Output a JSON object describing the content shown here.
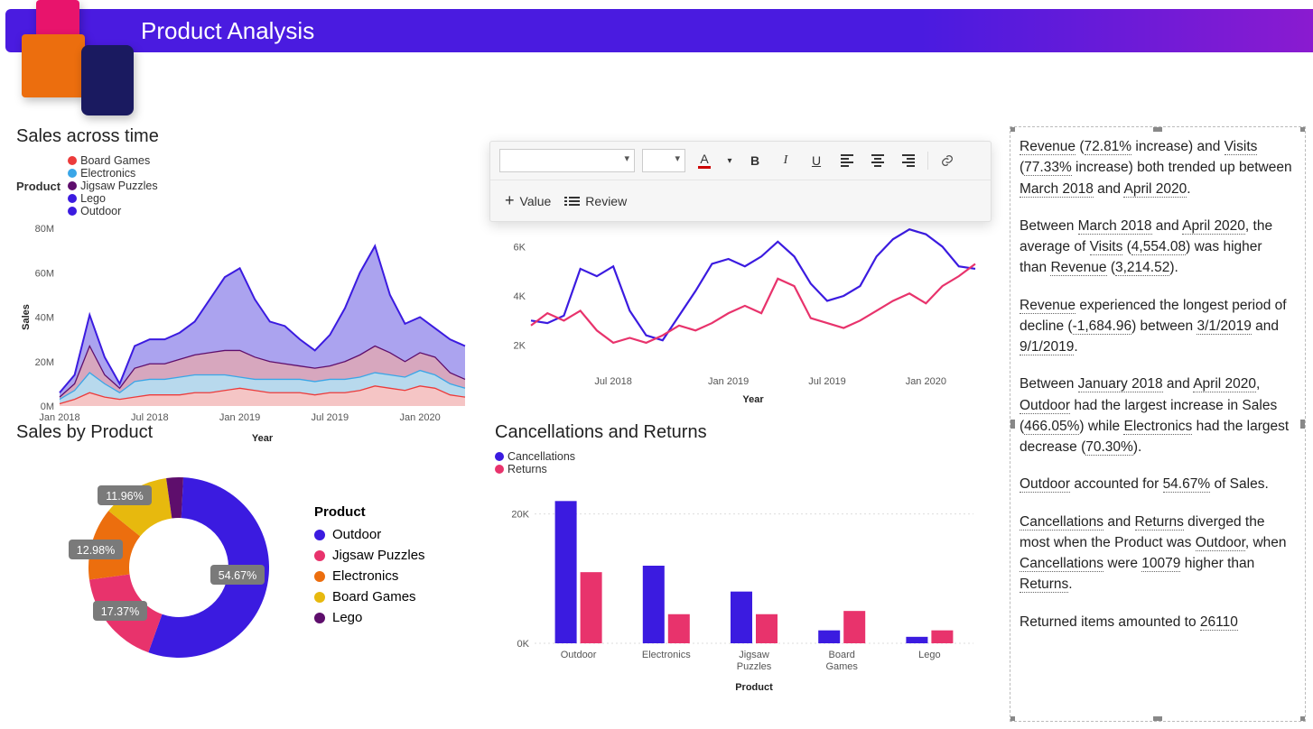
{
  "header": {
    "title": "Product Analysis"
  },
  "colors": {
    "outdoor": "#3b1be0",
    "jigsaw": "#e8336c",
    "electronics": "#ec6e0e",
    "boardgames": "#e7b90e",
    "lego": "#5e0e6c",
    "elec_line": "#3aa6e7",
    "cancel": "#3b1be0",
    "returns": "#e8336c",
    "area_fill": "#8f84ea"
  },
  "sales_time": {
    "title": "Sales across time",
    "legend_label": "Product",
    "series_order": [
      "Board Games",
      "Electronics",
      "Jigsaw Puzzles",
      "Lego",
      "Outdoor"
    ],
    "series_colors": [
      "#ec3b3b",
      "#3aa6e7",
      "#5e0e6c",
      "#3b1be0",
      "#3b1be0"
    ],
    "ylabel": "Sales",
    "xlabel": "Year",
    "yticks": [
      0,
      20,
      40,
      60,
      80
    ],
    "ytick_labels": [
      "0M",
      "20M",
      "40M",
      "60M",
      "80M"
    ],
    "x_labels": [
      "Jan 2018",
      "Jul 2018",
      "Jan 2019",
      "Jul 2019",
      "Jan 2020"
    ],
    "x_count": 28,
    "stacked_top": [
      6,
      14,
      41,
      22,
      10,
      27,
      30,
      30,
      33,
      38,
      48,
      58,
      62,
      48,
      38,
      36,
      30,
      25,
      32,
      44,
      60,
      72,
      50,
      37,
      40,
      35,
      30,
      27
    ],
    "stacked_mid": [
      4,
      10,
      27,
      14,
      8,
      17,
      19,
      19,
      21,
      23,
      24,
      25,
      25,
      22,
      20,
      19,
      18,
      17,
      18,
      20,
      23,
      27,
      24,
      20,
      24,
      22,
      15,
      12
    ],
    "stacked_low": [
      3,
      7,
      15,
      10,
      6,
      11,
      12,
      12,
      13,
      14,
      14,
      14,
      13,
      12,
      12,
      12,
      12,
      11,
      12,
      12,
      13,
      15,
      14,
      13,
      16,
      14,
      10,
      8
    ],
    "board_line": [
      1,
      3,
      6,
      4,
      3,
      4,
      5,
      5,
      5,
      6,
      6,
      7,
      8,
      7,
      6,
      6,
      6,
      5,
      6,
      6,
      7,
      9,
      8,
      7,
      9,
      8,
      5,
      4
    ]
  },
  "visits_chart": {
    "xlabel": "Year",
    "yticks": [
      2,
      4,
      6
    ],
    "ytick_labels": [
      "2K",
      "4K",
      "6K"
    ],
    "x_labels": [
      "Jul 2018",
      "Jan 2019",
      "Jul 2019",
      "Jan 2020"
    ],
    "x_count": 28,
    "blue": [
      3.0,
      2.9,
      3.2,
      5.1,
      4.8,
      5.2,
      3.4,
      2.4,
      2.2,
      3.2,
      4.2,
      5.3,
      5.5,
      5.2,
      5.6,
      6.2,
      5.6,
      4.5,
      3.8,
      4.0,
      4.4,
      5.6,
      6.3,
      6.7,
      6.5,
      6.0,
      5.2,
      5.1
    ],
    "pink": [
      2.8,
      3.3,
      3.0,
      3.4,
      2.6,
      2.1,
      2.3,
      2.1,
      2.4,
      2.8,
      2.6,
      2.9,
      3.3,
      3.6,
      3.3,
      4.7,
      4.4,
      3.1,
      2.9,
      2.7,
      3.0,
      3.4,
      3.8,
      4.1,
      3.7,
      4.4,
      4.8,
      5.3
    ],
    "colors": {
      "blue": "#3b1be0",
      "pink": "#e8336c"
    }
  },
  "donut": {
    "title": "Sales by Product",
    "legend_label": "Product",
    "slices": [
      {
        "label": "Outdoor",
        "value": 54.67,
        "color": "#3b1be0"
      },
      {
        "label": "Jigsaw Puzzles",
        "value": 17.37,
        "color": "#e8336c"
      },
      {
        "label": "Electronics",
        "value": 12.98,
        "color": "#ec6e0e"
      },
      {
        "label": "Board Games",
        "value": 11.96,
        "color": "#e7b90e"
      },
      {
        "label": "Lego",
        "value": 3.02,
        "color": "#5e0e6c"
      }
    ],
    "shown_pct": [
      "54.67%",
      "17.37%",
      "12.98%",
      "11.96%"
    ]
  },
  "bars": {
    "title": "Cancellations and Returns",
    "legend": [
      "Cancellations",
      "Returns"
    ],
    "legend_colors": [
      "#3b1be0",
      "#e8336c"
    ],
    "xlabel": "Product",
    "yticks": [
      0,
      20
    ],
    "ytick_labels": [
      "0K",
      "20K"
    ],
    "ymax": 24,
    "categories": [
      "Outdoor",
      "Electronics",
      "Jigsaw Puzzles",
      "Board Games",
      "Lego"
    ],
    "cancellations": [
      22,
      12,
      8,
      2,
      1
    ],
    "returns": [
      11,
      4.5,
      4.5,
      5,
      2
    ]
  },
  "toolbar": {
    "font": "",
    "size": "",
    "value_label": "Value",
    "review_label": "Review"
  },
  "narrative": {
    "p1": {
      "a": "Revenue",
      "b": "72.81%",
      "c": "Visits",
      "d": "77.33%",
      "e": "March 2018",
      "f": "April 2020"
    },
    "p2": {
      "a": "March 2018",
      "b": "April 2020",
      "c": "Visits",
      "d": "4,554.08",
      "e": "Revenue",
      "f": "3,214.52"
    },
    "p3": {
      "a": "Revenue",
      "b": "-1,684.96",
      "c": "3/1/2019",
      "d": "9/1/2019"
    },
    "p4": {
      "a": "January 2018",
      "b": "April 2020",
      "c": "Outdoor",
      "d": "466.05%",
      "e": "Electronics",
      "f": "70.30%"
    },
    "p5": {
      "a": "Outdoor",
      "b": "54.67%"
    },
    "p6": {
      "a": "Cancellations",
      "b": "Returns",
      "c": "Outdoor",
      "d": "Cancellations",
      "e": "10079",
      "f": "Returns"
    },
    "p7": {
      "a": "26110"
    }
  }
}
